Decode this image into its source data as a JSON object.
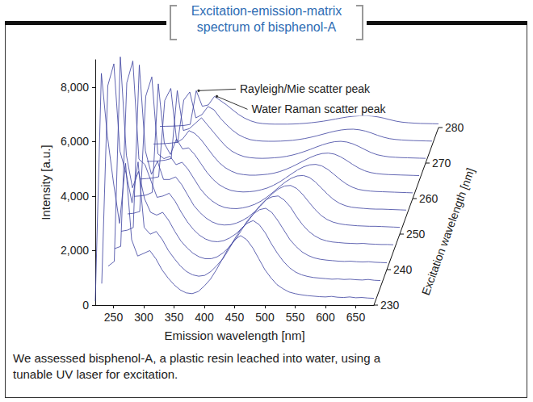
{
  "chart_data": {
    "type": "waterfall",
    "title": "Excitation-emission-matrix spectrum of bisphenol-A",
    "caption": "We assessed bisphenol-A, a plastic resin leached into water, using a tunable UV laser for excitation.",
    "x_label": "Emission wavelength [nm]",
    "y_label": "Intensity [a.u.]",
    "z_label": "Excitation wavelength [nm]",
    "color": "#3a3f9e",
    "grid": false,
    "xlim": [
      220,
      680
    ],
    "xticks": [
      250,
      300,
      350,
      400,
      450,
      500,
      550,
      600,
      650
    ],
    "ylim": [
      0,
      9000
    ],
    "yticks": [
      0,
      {
        "value": 2000,
        "label": "2,000"
      },
      {
        "value": 4000,
        "label": "4,000"
      },
      {
        "value": 6000,
        "label": "6,000"
      },
      {
        "value": 8000,
        "label": "8,000"
      }
    ],
    "zlim": [
      230,
      280
    ],
    "zticks": [
      230,
      240,
      250,
      260,
      270,
      280
    ],
    "x": [
      220,
      230,
      240,
      250,
      260,
      270,
      280,
      290,
      300,
      310,
      320,
      330,
      340,
      350,
      360,
      370,
      380,
      390,
      400,
      410,
      420,
      430,
      440,
      450,
      460,
      470,
      480,
      490,
      500,
      510,
      520,
      530,
      540,
      550,
      560,
      570,
      580,
      590,
      600,
      610,
      620,
      630,
      640,
      650,
      660,
      670,
      680
    ],
    "series": [
      {
        "excitation": 230,
        "values": [
          150,
          8500,
          6200,
          4500,
          3000,
          5200,
          2400,
          1800,
          1900,
          2000,
          1700,
          1300,
          1000,
          750,
          560,
          450,
          420,
          500,
          700,
          950,
          1300,
          1700,
          2100,
          2400,
          2550,
          2400,
          2100,
          1700,
          1300,
          1000,
          750,
          600,
          480,
          420,
          380,
          350,
          330,
          310,
          300,
          320,
          290,
          280,
          300,
          270,
          280,
          260,
          250
        ]
      },
      {
        "excitation": 235,
        "values": [
          140,
          7400,
          8200,
          5000,
          4200,
          3100,
          4600,
          2200,
          1950,
          2050,
          1750,
          1350,
          1050,
          780,
          580,
          460,
          410,
          440,
          580,
          800,
          1050,
          1400,
          1800,
          2150,
          2350,
          2450,
          2300,
          2000,
          1600,
          1250,
          950,
          720,
          560,
          460,
          400,
          360,
          340,
          320,
          300,
          310,
          290,
          300,
          280,
          270,
          290,
          260,
          250
        ]
      },
      {
        "excitation": 240,
        "values": [
          130,
          300,
          7800,
          4200,
          3000,
          3600,
          2600,
          2100,
          2000,
          2100,
          1800,
          1400,
          1050,
          800,
          600,
          470,
          400,
          400,
          470,
          620,
          830,
          1100,
          1450,
          1800,
          2050,
          2200,
          2250,
          2100,
          1800,
          1450,
          1100,
          850,
          650,
          520,
          430,
          380,
          350,
          330,
          310,
          300,
          310,
          290,
          280,
          290,
          270,
          260,
          250
        ]
      },
      {
        "excitation": 245,
        "values": [
          120,
          200,
          6200,
          7000,
          3400,
          3200,
          2600,
          2000,
          2050,
          2150,
          1850,
          1450,
          1100,
          820,
          610,
          470,
          390,
          370,
          410,
          510,
          660,
          860,
          1120,
          1420,
          1700,
          1920,
          2020,
          2050,
          1900,
          1650,
          1300,
          1000,
          760,
          590,
          470,
          400,
          360,
          340,
          320,
          310,
          300,
          310,
          290,
          280,
          270,
          270,
          260
        ]
      },
      {
        "excitation": 250,
        "values": [
          110,
          150,
          250,
          6500,
          3200,
          2300,
          2800,
          2100,
          2100,
          2200,
          1900,
          1500,
          1100,
          830,
          620,
          470,
          380,
          350,
          360,
          420,
          520,
          660,
          850,
          1080,
          1330,
          1560,
          1740,
          1850,
          1870,
          1750,
          1520,
          1230,
          950,
          720,
          560,
          460,
          400,
          360,
          340,
          320,
          310,
          300,
          300,
          290,
          280,
          270,
          260
        ]
      },
      {
        "excitation": 255,
        "values": [
          100,
          130,
          200,
          5000,
          5800,
          2600,
          2400,
          2500,
          2150,
          2250,
          1950,
          1550,
          1150,
          850,
          630,
          470,
          370,
          330,
          320,
          350,
          410,
          500,
          630,
          800,
          1000,
          1220,
          1420,
          1580,
          1680,
          1700,
          1620,
          1430,
          1180,
          920,
          700,
          540,
          440,
          380,
          350,
          330,
          310,
          300,
          300,
          290,
          280,
          270,
          260
        ]
      },
      {
        "excitation": 260,
        "values": [
          100,
          120,
          160,
          280,
          5200,
          2500,
          2000,
          2700,
          2250,
          2300,
          2000,
          1600,
          1200,
          880,
          640,
          480,
          370,
          320,
          300,
          310,
          340,
          400,
          480,
          600,
          750,
          930,
          1120,
          1300,
          1440,
          1530,
          1550,
          1480,
          1320,
          1100,
          870,
          670,
          520,
          420,
          370,
          340,
          320,
          310,
          300,
          290,
          280,
          270,
          260
        ]
      },
      {
        "excitation": 265,
        "values": [
          90,
          110,
          140,
          200,
          4000,
          4600,
          1900,
          2100,
          2500,
          2350,
          2050,
          1650,
          1250,
          900,
          650,
          480,
          360,
          310,
          280,
          280,
          300,
          330,
          380,
          460,
          570,
          700,
          850,
          1010,
          1160,
          1280,
          1360,
          1380,
          1330,
          1200,
          1020,
          820,
          640,
          500,
          410,
          360,
          330,
          310,
          300,
          290,
          280,
          270,
          260
        ]
      },
      {
        "excitation": 270,
        "values": [
          90,
          100,
          120,
          160,
          250,
          4000,
          1800,
          1900,
          2200,
          2500,
          2100,
          1700,
          1300,
          930,
          660,
          480,
          360,
          300,
          270,
          260,
          270,
          290,
          320,
          370,
          440,
          530,
          640,
          760,
          890,
          1010,
          1110,
          1180,
          1200,
          1160,
          1060,
          910,
          740,
          580,
          460,
          390,
          340,
          320,
          300,
          290,
          280,
          270,
          260
        ]
      },
      {
        "excitation": 275,
        "values": [
          80,
          90,
          110,
          140,
          190,
          2800,
          3300,
          1700,
          1900,
          2400,
          2200,
          1700,
          1300,
          950,
          670,
          480,
          350,
          290,
          260,
          250,
          250,
          260,
          280,
          310,
          360,
          420,
          500,
          590,
          690,
          790,
          880,
          950,
          990,
          1000,
          960,
          880,
          760,
          620,
          500,
          410,
          360,
          330,
          310,
          290,
          280,
          270,
          260
        ]
      },
      {
        "excitation": 280,
        "values": [
          80,
          90,
          100,
          120,
          150,
          220,
          2600,
          1500,
          1600,
          2200,
          1900,
          1600,
          1250,
          920,
          660,
          470,
          340,
          280,
          250,
          240,
          240,
          240,
          250,
          270,
          300,
          340,
          390,
          450,
          520,
          600,
          680,
          750,
          800,
          830,
          840,
          810,
          750,
          660,
          550,
          450,
          380,
          340,
          310,
          290,
          280,
          270,
          260
        ]
      }
    ],
    "annotations": [
      {
        "text": "Rayleigh/Mie scatter peak",
        "excitation": 280,
        "x": 280
      },
      {
        "text": "Water Raman scatter peak",
        "excitation": 280,
        "x": 310
      }
    ]
  }
}
